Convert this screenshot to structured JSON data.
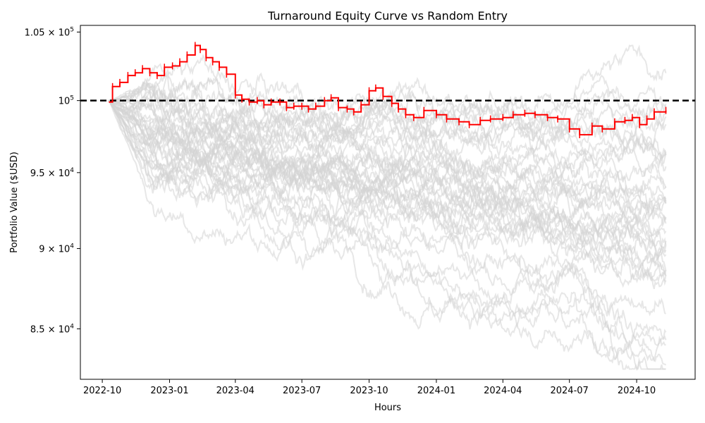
{
  "chart_data": {
    "type": "line",
    "title": "Turnaround Equity Curve vs Random Entry",
    "xlabel": "Hours",
    "ylabel": "Portfolio Value ($USD)",
    "yscale": "log",
    "xlim": [
      "2022-09-01",
      "2024-12-20"
    ],
    "ylim": [
      82000,
      105500
    ],
    "x_ticks": [
      "2022-10",
      "2023-01",
      "2023-04",
      "2023-07",
      "2023-10",
      "2024-01",
      "2024-04",
      "2024-07",
      "2024-10"
    ],
    "y_ticks": [
      {
        "mantissa": "8.5",
        "exp": "4",
        "value": 85000
      },
      {
        "mantissa": "9",
        "exp": "4",
        "value": 90000
      },
      {
        "mantissa": "9.5",
        "exp": "4",
        "value": 95000
      },
      {
        "mantissa": "",
        "exp": "5",
        "value": 100000
      },
      {
        "mantissa": "1.05",
        "exp": "5",
        "value": 105000
      }
    ],
    "grid": false,
    "legend": "none",
    "reference_line": {
      "value": 100000,
      "style": "dashed",
      "color": "#000000"
    },
    "series": [
      {
        "color": "#ff0000",
        "x": [
          "2022-10-10",
          "2022-10-15",
          "2022-10-25",
          "2022-11-05",
          "2022-11-15",
          "2022-11-25",
          "2022-12-05",
          "2022-12-15",
          "2022-12-25",
          "2023-01-05",
          "2023-01-15",
          "2023-01-25",
          "2023-02-05",
          "2023-02-12",
          "2023-02-20",
          "2023-03-01",
          "2023-03-10",
          "2023-03-20",
          "2023-04-01",
          "2023-04-10",
          "2023-04-20",
          "2023-05-01",
          "2023-05-10",
          "2023-05-20",
          "2023-06-01",
          "2023-06-10",
          "2023-06-20",
          "2023-07-01",
          "2023-07-10",
          "2023-07-20",
          "2023-08-01",
          "2023-08-10",
          "2023-08-20",
          "2023-09-01",
          "2023-09-10",
          "2023-09-20",
          "2023-10-01",
          "2023-10-10",
          "2023-10-20",
          "2023-11-01",
          "2023-11-10",
          "2023-11-20",
          "2023-12-01",
          "2023-12-15",
          "2024-01-01",
          "2024-01-15",
          "2024-02-01",
          "2024-02-15",
          "2024-03-01",
          "2024-03-15",
          "2024-04-01",
          "2024-04-15",
          "2024-05-01",
          "2024-05-15",
          "2024-06-01",
          "2024-06-15",
          "2024-07-01",
          "2024-07-15",
          "2024-08-01",
          "2024-08-15",
          "2024-09-01",
          "2024-09-15",
          "2024-09-25",
          "2024-10-05",
          "2024-10-15",
          "2024-10-25",
          "2024-11-10"
        ],
        "y": [
          99900,
          101000,
          101300,
          101800,
          102000,
          102300,
          102000,
          101800,
          102400,
          102500,
          102800,
          103300,
          104000,
          103700,
          103100,
          102800,
          102400,
          101900,
          100400,
          100100,
          99900,
          100000,
          99700,
          99900,
          99900,
          99500,
          99600,
          99600,
          99400,
          99600,
          100000,
          100200,
          99500,
          99400,
          99200,
          99700,
          100700,
          100900,
          100300,
          99800,
          99400,
          99000,
          98800,
          99300,
          99000,
          98700,
          98500,
          98300,
          98600,
          98700,
          98800,
          99000,
          99100,
          99000,
          98800,
          98700,
          98000,
          97600,
          98200,
          98000,
          98500,
          98600,
          98800,
          98300,
          98700,
          99200,
          99300
        ]
      }
    ],
    "random_series_color": "#d3d3d3",
    "random_series_count": 40,
    "random_series_end_range": [
      82500,
      101800
    ]
  }
}
